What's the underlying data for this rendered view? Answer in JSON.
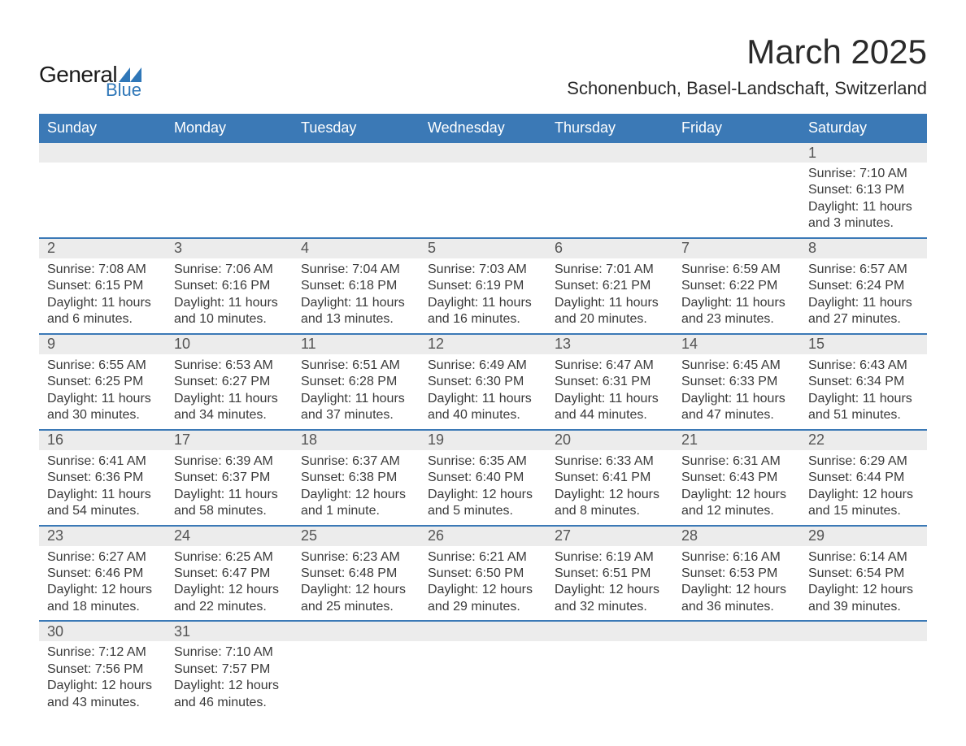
{
  "brand": {
    "word1": "General",
    "word2": "Blue",
    "triangle_color": "#2f77b8",
    "text_color": "#1a1a1a"
  },
  "title": "March 2025",
  "subtitle": "Schonenbuch, Basel-Landschaft, Switzerland",
  "colors": {
    "header_bg": "#3b79b6",
    "header_text": "#ffffff",
    "strip_bg": "#ececec",
    "row_divider": "#3b79b6",
    "body_text": "#3a3a3a",
    "page_bg": "#ffffff"
  },
  "typography": {
    "title_fontsize": 42,
    "subtitle_fontsize": 22,
    "weekday_fontsize": 18,
    "daynum_fontsize": 18,
    "body_fontsize": 16,
    "font_family": "Arial"
  },
  "weekdays": [
    "Sunday",
    "Monday",
    "Tuesday",
    "Wednesday",
    "Thursday",
    "Friday",
    "Saturday"
  ],
  "weeks": [
    [
      {
        "day": "",
        "sunrise": "",
        "sunset": "",
        "daylight": ""
      },
      {
        "day": "",
        "sunrise": "",
        "sunset": "",
        "daylight": ""
      },
      {
        "day": "",
        "sunrise": "",
        "sunset": "",
        "daylight": ""
      },
      {
        "day": "",
        "sunrise": "",
        "sunset": "",
        "daylight": ""
      },
      {
        "day": "",
        "sunrise": "",
        "sunset": "",
        "daylight": ""
      },
      {
        "day": "",
        "sunrise": "",
        "sunset": "",
        "daylight": ""
      },
      {
        "day": "1",
        "sunrise": "Sunrise: 7:10 AM",
        "sunset": "Sunset: 6:13 PM",
        "daylight": "Daylight: 11 hours and 3 minutes."
      }
    ],
    [
      {
        "day": "2",
        "sunrise": "Sunrise: 7:08 AM",
        "sunset": "Sunset: 6:15 PM",
        "daylight": "Daylight: 11 hours and 6 minutes."
      },
      {
        "day": "3",
        "sunrise": "Sunrise: 7:06 AM",
        "sunset": "Sunset: 6:16 PM",
        "daylight": "Daylight: 11 hours and 10 minutes."
      },
      {
        "day": "4",
        "sunrise": "Sunrise: 7:04 AM",
        "sunset": "Sunset: 6:18 PM",
        "daylight": "Daylight: 11 hours and 13 minutes."
      },
      {
        "day": "5",
        "sunrise": "Sunrise: 7:03 AM",
        "sunset": "Sunset: 6:19 PM",
        "daylight": "Daylight: 11 hours and 16 minutes."
      },
      {
        "day": "6",
        "sunrise": "Sunrise: 7:01 AM",
        "sunset": "Sunset: 6:21 PM",
        "daylight": "Daylight: 11 hours and 20 minutes."
      },
      {
        "day": "7",
        "sunrise": "Sunrise: 6:59 AM",
        "sunset": "Sunset: 6:22 PM",
        "daylight": "Daylight: 11 hours and 23 minutes."
      },
      {
        "day": "8",
        "sunrise": "Sunrise: 6:57 AM",
        "sunset": "Sunset: 6:24 PM",
        "daylight": "Daylight: 11 hours and 27 minutes."
      }
    ],
    [
      {
        "day": "9",
        "sunrise": "Sunrise: 6:55 AM",
        "sunset": "Sunset: 6:25 PM",
        "daylight": "Daylight: 11 hours and 30 minutes."
      },
      {
        "day": "10",
        "sunrise": "Sunrise: 6:53 AM",
        "sunset": "Sunset: 6:27 PM",
        "daylight": "Daylight: 11 hours and 34 minutes."
      },
      {
        "day": "11",
        "sunrise": "Sunrise: 6:51 AM",
        "sunset": "Sunset: 6:28 PM",
        "daylight": "Daylight: 11 hours and 37 minutes."
      },
      {
        "day": "12",
        "sunrise": "Sunrise: 6:49 AM",
        "sunset": "Sunset: 6:30 PM",
        "daylight": "Daylight: 11 hours and 40 minutes."
      },
      {
        "day": "13",
        "sunrise": "Sunrise: 6:47 AM",
        "sunset": "Sunset: 6:31 PM",
        "daylight": "Daylight: 11 hours and 44 minutes."
      },
      {
        "day": "14",
        "sunrise": "Sunrise: 6:45 AM",
        "sunset": "Sunset: 6:33 PM",
        "daylight": "Daylight: 11 hours and 47 minutes."
      },
      {
        "day": "15",
        "sunrise": "Sunrise: 6:43 AM",
        "sunset": "Sunset: 6:34 PM",
        "daylight": "Daylight: 11 hours and 51 minutes."
      }
    ],
    [
      {
        "day": "16",
        "sunrise": "Sunrise: 6:41 AM",
        "sunset": "Sunset: 6:36 PM",
        "daylight": "Daylight: 11 hours and 54 minutes."
      },
      {
        "day": "17",
        "sunrise": "Sunrise: 6:39 AM",
        "sunset": "Sunset: 6:37 PM",
        "daylight": "Daylight: 11 hours and 58 minutes."
      },
      {
        "day": "18",
        "sunrise": "Sunrise: 6:37 AM",
        "sunset": "Sunset: 6:38 PM",
        "daylight": "Daylight: 12 hours and 1 minute."
      },
      {
        "day": "19",
        "sunrise": "Sunrise: 6:35 AM",
        "sunset": "Sunset: 6:40 PM",
        "daylight": "Daylight: 12 hours and 5 minutes."
      },
      {
        "day": "20",
        "sunrise": "Sunrise: 6:33 AM",
        "sunset": "Sunset: 6:41 PM",
        "daylight": "Daylight: 12 hours and 8 minutes."
      },
      {
        "day": "21",
        "sunrise": "Sunrise: 6:31 AM",
        "sunset": "Sunset: 6:43 PM",
        "daylight": "Daylight: 12 hours and 12 minutes."
      },
      {
        "day": "22",
        "sunrise": "Sunrise: 6:29 AM",
        "sunset": "Sunset: 6:44 PM",
        "daylight": "Daylight: 12 hours and 15 minutes."
      }
    ],
    [
      {
        "day": "23",
        "sunrise": "Sunrise: 6:27 AM",
        "sunset": "Sunset: 6:46 PM",
        "daylight": "Daylight: 12 hours and 18 minutes."
      },
      {
        "day": "24",
        "sunrise": "Sunrise: 6:25 AM",
        "sunset": "Sunset: 6:47 PM",
        "daylight": "Daylight: 12 hours and 22 minutes."
      },
      {
        "day": "25",
        "sunrise": "Sunrise: 6:23 AM",
        "sunset": "Sunset: 6:48 PM",
        "daylight": "Daylight: 12 hours and 25 minutes."
      },
      {
        "day": "26",
        "sunrise": "Sunrise: 6:21 AM",
        "sunset": "Sunset: 6:50 PM",
        "daylight": "Daylight: 12 hours and 29 minutes."
      },
      {
        "day": "27",
        "sunrise": "Sunrise: 6:19 AM",
        "sunset": "Sunset: 6:51 PM",
        "daylight": "Daylight: 12 hours and 32 minutes."
      },
      {
        "day": "28",
        "sunrise": "Sunrise: 6:16 AM",
        "sunset": "Sunset: 6:53 PM",
        "daylight": "Daylight: 12 hours and 36 minutes."
      },
      {
        "day": "29",
        "sunrise": "Sunrise: 6:14 AM",
        "sunset": "Sunset: 6:54 PM",
        "daylight": "Daylight: 12 hours and 39 minutes."
      }
    ],
    [
      {
        "day": "30",
        "sunrise": "Sunrise: 7:12 AM",
        "sunset": "Sunset: 7:56 PM",
        "daylight": "Daylight: 12 hours and 43 minutes."
      },
      {
        "day": "31",
        "sunrise": "Sunrise: 7:10 AM",
        "sunset": "Sunset: 7:57 PM",
        "daylight": "Daylight: 12 hours and 46 minutes."
      },
      {
        "day": "",
        "sunrise": "",
        "sunset": "",
        "daylight": ""
      },
      {
        "day": "",
        "sunrise": "",
        "sunset": "",
        "daylight": ""
      },
      {
        "day": "",
        "sunrise": "",
        "sunset": "",
        "daylight": ""
      },
      {
        "day": "",
        "sunrise": "",
        "sunset": "",
        "daylight": ""
      },
      {
        "day": "",
        "sunrise": "",
        "sunset": "",
        "daylight": ""
      }
    ]
  ]
}
